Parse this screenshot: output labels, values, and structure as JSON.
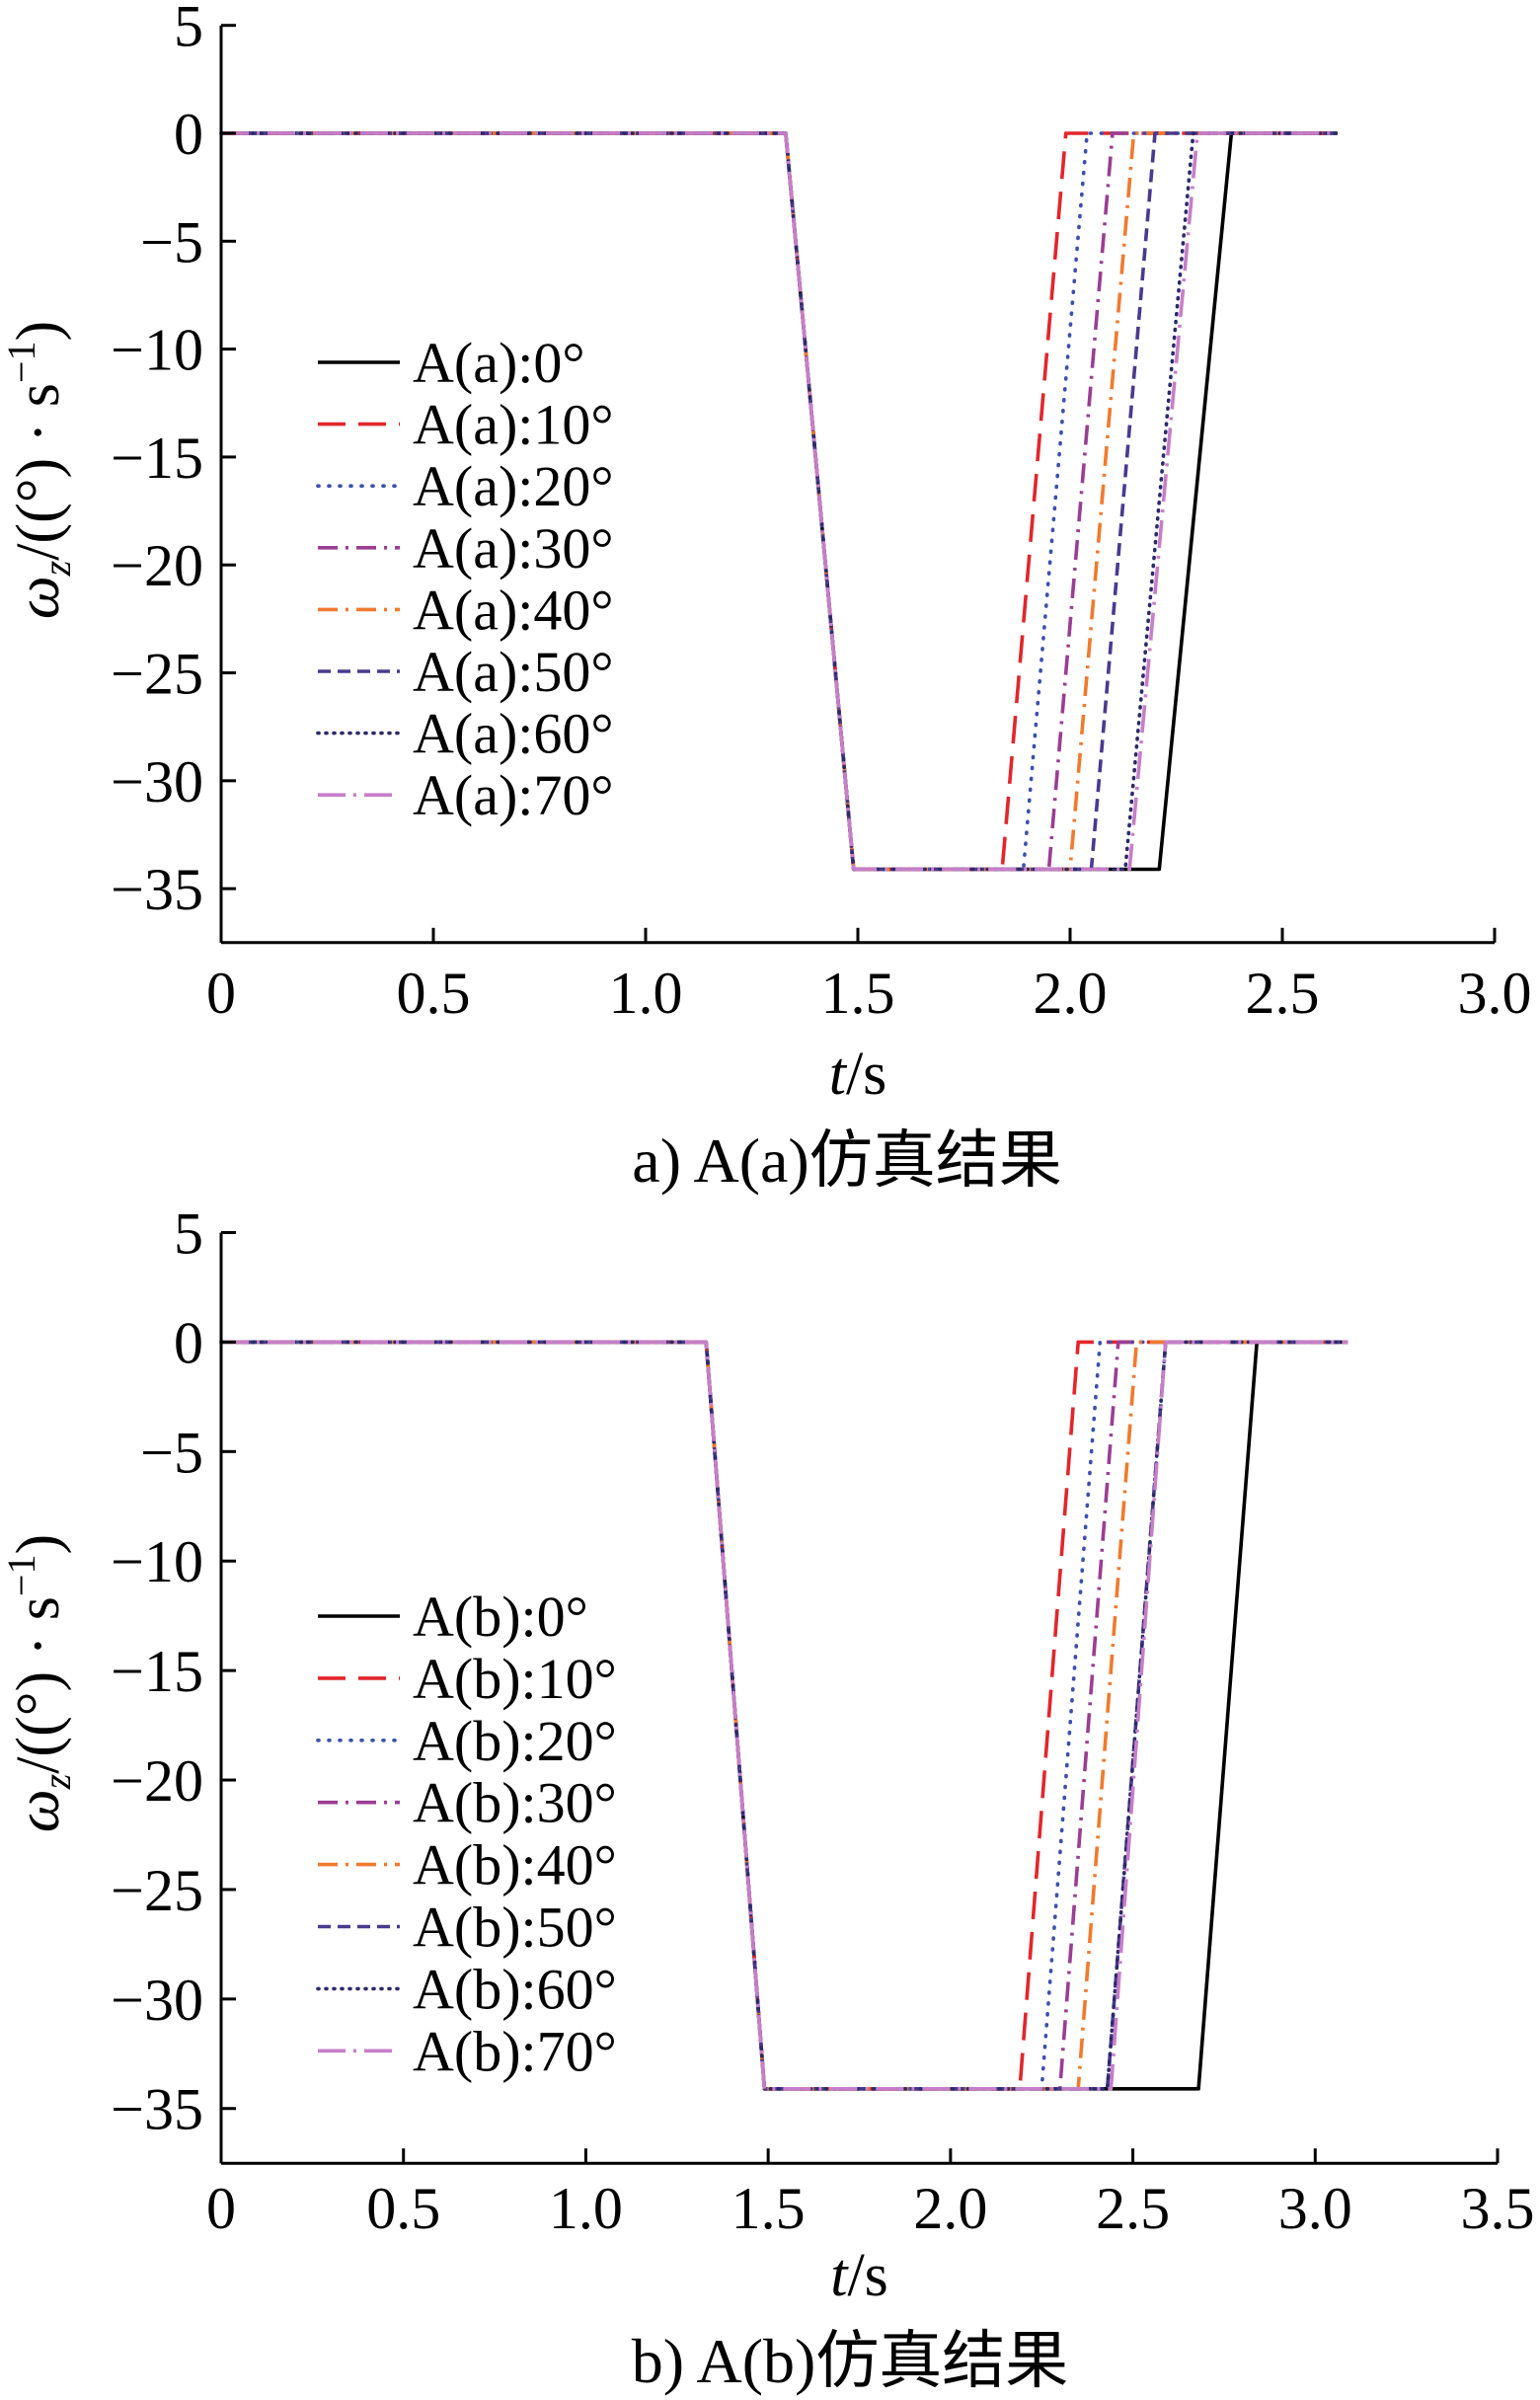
{
  "chart_data": [
    {
      "type": "line",
      "caption": "a) A(a)仿真结果",
      "xlabel": {
        "symbol": "t",
        "unit": "/s"
      },
      "ylabel": {
        "symbol": "ω",
        "subscript": "z",
        "unit": "/((°) · s",
        "superscript": "−1",
        "close": ")"
      },
      "xlim": [
        0,
        3.0
      ],
      "ylim": [
        -37.5,
        5
      ],
      "xticks": [
        "0",
        "0.5",
        "1.0",
        "1.5",
        "2.0",
        "2.5",
        "3.0"
      ],
      "yticks": [
        "5",
        "0",
        "−5",
        "−10",
        "−15",
        "−20",
        "−25",
        "−30",
        "−35"
      ],
      "grid": false,
      "legend": "center-left",
      "series": [
        {
          "name": "A(a):0°",
          "color": "#000000",
          "style": "solid",
          "x": [
            0,
            1.33,
            1.49,
            2.21,
            2.38,
            2.63
          ],
          "y": [
            0,
            0,
            -34.1,
            -34.1,
            0,
            0
          ]
        },
        {
          "name": "A(a):10°",
          "color": "#e2262c",
          "style": "long-dashed",
          "x": [
            0,
            1.33,
            1.49,
            1.84,
            1.99,
            2.63
          ],
          "y": [
            0,
            0,
            -34.1,
            -34.1,
            0,
            0
          ]
        },
        {
          "name": "A(a):20°",
          "color": "#3c4fae",
          "style": "dotted",
          "x": [
            0,
            1.33,
            1.49,
            1.89,
            2.04,
            2.63
          ],
          "y": [
            0,
            0,
            -34.1,
            -34.1,
            0,
            0
          ]
        },
        {
          "name": "A(a):30°",
          "color": "#9a3e93",
          "style": "dash-dot",
          "x": [
            0,
            1.33,
            1.49,
            1.95,
            2.1,
            2.63
          ],
          "y": [
            0,
            0,
            -34.1,
            -34.1,
            0,
            0
          ]
        },
        {
          "name": "A(a):40°",
          "color": "#f07a2e",
          "style": "dash-dot",
          "x": [
            0,
            1.33,
            1.49,
            2.0,
            2.15,
            2.63
          ],
          "y": [
            0,
            0,
            -34.1,
            -34.1,
            0,
            0
          ]
        },
        {
          "name": "A(a):50°",
          "color": "#4a3a8e",
          "style": "dashed",
          "x": [
            0,
            1.33,
            1.49,
            2.05,
            2.2,
            2.63
          ],
          "y": [
            0,
            0,
            -34.1,
            -34.1,
            0,
            0
          ]
        },
        {
          "name": "A(a):60°",
          "color": "#2b2a6b",
          "style": "dense-dotted",
          "x": [
            0,
            1.33,
            1.49,
            2.13,
            2.29,
            2.63
          ],
          "y": [
            0,
            0,
            -34.1,
            -34.1,
            0,
            0
          ]
        },
        {
          "name": "A(a):70°",
          "color": "#c77ec8",
          "style": "long-dash-dot",
          "x": [
            0,
            1.33,
            1.49,
            2.14,
            2.3,
            2.63
          ],
          "y": [
            0,
            0,
            -34.1,
            -34.1,
            0,
            0
          ]
        }
      ]
    },
    {
      "type": "line",
      "caption": "b) A(b)仿真结果",
      "xlabel": {
        "symbol": "t",
        "unit": "/s"
      },
      "ylabel": {
        "symbol": "ω",
        "subscript": "z",
        "unit": "/((°) · s",
        "superscript": "−1",
        "close": ")"
      },
      "xlim": [
        0,
        3.5
      ],
      "ylim": [
        -37.5,
        5
      ],
      "xticks": [
        "0",
        "0.5",
        "1.0",
        "1.5",
        "2.0",
        "2.5",
        "3.0",
        "3.5"
      ],
      "yticks": [
        "5",
        "0",
        "−5",
        "−10",
        "−15",
        "−20",
        "−25",
        "−30",
        "−35"
      ],
      "grid": false,
      "legend": "center-left",
      "series": [
        {
          "name": "A(b):0°",
          "color": "#000000",
          "style": "solid",
          "x": [
            0,
            1.33,
            1.49,
            2.68,
            2.84,
            3.09
          ],
          "y": [
            0,
            0,
            -34.1,
            -34.1,
            0,
            0
          ]
        },
        {
          "name": "A(b):10°",
          "color": "#e2262c",
          "style": "long-dashed",
          "x": [
            0,
            1.33,
            1.49,
            2.19,
            2.35,
            3.09
          ],
          "y": [
            0,
            0,
            -34.1,
            -34.1,
            0,
            0
          ]
        },
        {
          "name": "A(b):20°",
          "color": "#3c4fae",
          "style": "dotted",
          "x": [
            0,
            1.33,
            1.49,
            2.25,
            2.41,
            3.09
          ],
          "y": [
            0,
            0,
            -34.1,
            -34.1,
            0,
            0
          ]
        },
        {
          "name": "A(b):30°",
          "color": "#9a3e93",
          "style": "dash-dot",
          "x": [
            0,
            1.33,
            1.49,
            2.3,
            2.46,
            3.09
          ],
          "y": [
            0,
            0,
            -34.1,
            -34.1,
            0,
            0
          ]
        },
        {
          "name": "A(b):40°",
          "color": "#f07a2e",
          "style": "dash-dot",
          "x": [
            0,
            1.33,
            1.49,
            2.35,
            2.51,
            3.09
          ],
          "y": [
            0,
            0,
            -34.1,
            -34.1,
            0,
            0
          ]
        },
        {
          "name": "A(b):50°",
          "color": "#4a3a8e",
          "style": "dashed",
          "x": [
            0,
            1.33,
            1.49,
            2.43,
            2.59,
            3.09
          ],
          "y": [
            0,
            0,
            -34.1,
            -34.1,
            0,
            0
          ]
        },
        {
          "name": "A(b):60°",
          "color": "#2b2a6b",
          "style": "dense-dotted",
          "x": [
            0,
            1.33,
            1.49,
            2.43,
            2.59,
            3.09
          ],
          "y": [
            0,
            0,
            -34.1,
            -34.1,
            0,
            0
          ]
        },
        {
          "name": "A(b):70°",
          "color": "#c77ec8",
          "style": "long-dash-dot",
          "x": [
            0,
            1.33,
            1.49,
            2.44,
            2.59,
            3.09
          ],
          "y": [
            0,
            0,
            -34.1,
            -34.1,
            0,
            0
          ]
        }
      ]
    }
  ]
}
